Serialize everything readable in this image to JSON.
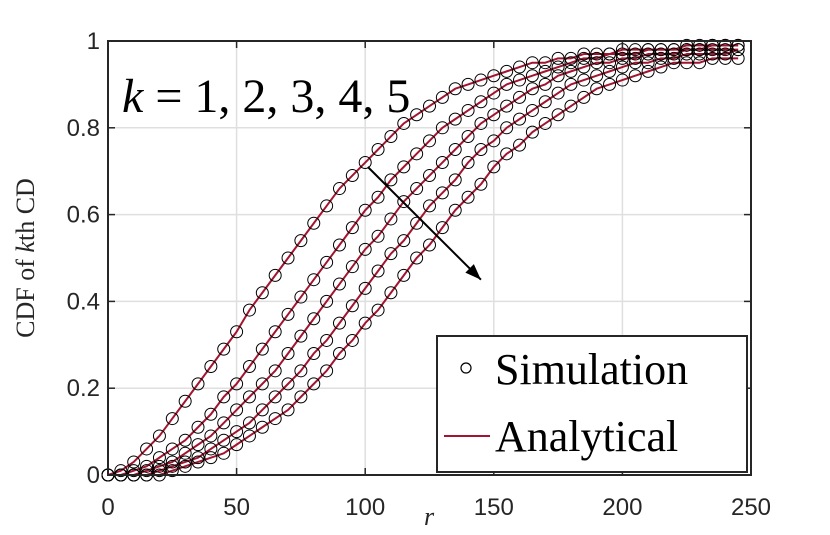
{
  "chart_data": {
    "type": "line",
    "xlabel": "r",
    "ylabel_parts": [
      "CDF of ",
      "k",
      "th CD"
    ],
    "xlim": [
      0,
      250
    ],
    "ylim": [
      0,
      1
    ],
    "xticks": [
      0,
      50,
      100,
      150,
      200,
      250
    ],
    "yticks": [
      0,
      0.2,
      0.4,
      0.6,
      0.8,
      1
    ],
    "xtick_labels": [
      "0",
      "50",
      "100",
      "150",
      "200",
      "250"
    ],
    "ytick_labels": [
      "0",
      "0.2",
      "0.4",
      "0.6",
      "0.8",
      "1"
    ],
    "grid": true,
    "legend_position": "bottom-right",
    "annotation": {
      "k_symbol": "k",
      "text": " = 1, 2, 3, 4, 5",
      "arrow_from": [
        101,
        0.71
      ],
      "arrow_to": [
        145,
        0.45
      ]
    },
    "legend": [
      {
        "label": "Simulation",
        "marker": "circle",
        "color": "#000000"
      },
      {
        "label": "Analytical",
        "marker": "line",
        "color": "#a2142f"
      }
    ],
    "x": [
      0,
      5,
      10,
      15,
      20,
      25,
      30,
      35,
      40,
      45,
      50,
      55,
      60,
      65,
      70,
      75,
      80,
      85,
      90,
      95,
      100,
      105,
      110,
      115,
      120,
      125,
      130,
      135,
      140,
      145,
      150,
      155,
      160,
      165,
      170,
      175,
      180,
      185,
      190,
      195,
      200,
      205,
      210,
      215,
      220,
      225,
      230,
      235,
      240,
      245
    ],
    "series": [
      {
        "name": "k=1",
        "color": "#a2142f",
        "values": [
          0.0,
          0.01,
          0.03,
          0.06,
          0.09,
          0.13,
          0.17,
          0.21,
          0.25,
          0.29,
          0.33,
          0.38,
          0.42,
          0.46,
          0.5,
          0.54,
          0.58,
          0.62,
          0.66,
          0.69,
          0.72,
          0.75,
          0.78,
          0.81,
          0.83,
          0.85,
          0.87,
          0.89,
          0.9,
          0.91,
          0.92,
          0.93,
          0.94,
          0.95,
          0.95,
          0.96,
          0.96,
          0.97,
          0.97,
          0.97,
          0.98,
          0.98,
          0.98,
          0.98,
          0.98,
          0.99,
          0.99,
          0.99,
          0.99,
          0.99
        ]
      },
      {
        "name": "k=2",
        "color": "#a2142f",
        "values": [
          0.0,
          0.0,
          0.01,
          0.02,
          0.04,
          0.06,
          0.08,
          0.11,
          0.14,
          0.18,
          0.21,
          0.25,
          0.29,
          0.33,
          0.37,
          0.41,
          0.45,
          0.49,
          0.53,
          0.57,
          0.61,
          0.64,
          0.68,
          0.71,
          0.74,
          0.77,
          0.8,
          0.82,
          0.84,
          0.86,
          0.88,
          0.9,
          0.91,
          0.92,
          0.93,
          0.94,
          0.95,
          0.96,
          0.96,
          0.97,
          0.97,
          0.97,
          0.98,
          0.98,
          0.98,
          0.98,
          0.98,
          0.99,
          0.99,
          0.99
        ]
      },
      {
        "name": "k=3",
        "color": "#a2142f",
        "values": [
          0.0,
          0.0,
          0.0,
          0.01,
          0.02,
          0.03,
          0.05,
          0.07,
          0.09,
          0.12,
          0.15,
          0.18,
          0.21,
          0.24,
          0.28,
          0.32,
          0.36,
          0.4,
          0.44,
          0.48,
          0.52,
          0.55,
          0.59,
          0.63,
          0.66,
          0.69,
          0.72,
          0.75,
          0.78,
          0.81,
          0.83,
          0.85,
          0.87,
          0.89,
          0.9,
          0.92,
          0.93,
          0.94,
          0.95,
          0.95,
          0.96,
          0.96,
          0.97,
          0.97,
          0.97,
          0.98,
          0.98,
          0.98,
          0.98,
          0.98
        ]
      },
      {
        "name": "k=4",
        "color": "#a2142f",
        "values": [
          0.0,
          0.0,
          0.0,
          0.0,
          0.01,
          0.02,
          0.03,
          0.04,
          0.06,
          0.08,
          0.1,
          0.12,
          0.15,
          0.18,
          0.21,
          0.24,
          0.28,
          0.31,
          0.35,
          0.39,
          0.43,
          0.47,
          0.51,
          0.54,
          0.58,
          0.62,
          0.65,
          0.68,
          0.72,
          0.75,
          0.77,
          0.8,
          0.82,
          0.84,
          0.86,
          0.88,
          0.9,
          0.91,
          0.92,
          0.93,
          0.94,
          0.95,
          0.95,
          0.96,
          0.96,
          0.97,
          0.97,
          0.97,
          0.97,
          0.98
        ]
      },
      {
        "name": "k=5",
        "color": "#a2142f",
        "values": [
          0.0,
          0.0,
          0.0,
          0.0,
          0.0,
          0.01,
          0.02,
          0.03,
          0.04,
          0.05,
          0.07,
          0.09,
          0.11,
          0.13,
          0.15,
          0.18,
          0.21,
          0.24,
          0.28,
          0.31,
          0.35,
          0.38,
          0.42,
          0.46,
          0.5,
          0.53,
          0.57,
          0.61,
          0.64,
          0.67,
          0.71,
          0.74,
          0.76,
          0.79,
          0.81,
          0.83,
          0.85,
          0.87,
          0.89,
          0.9,
          0.91,
          0.92,
          0.93,
          0.94,
          0.95,
          0.95,
          0.95,
          0.96,
          0.96,
          0.96
        ]
      }
    ]
  }
}
